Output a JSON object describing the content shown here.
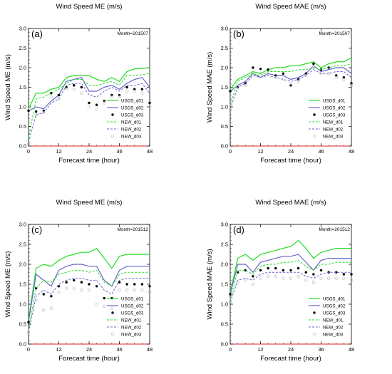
{
  "legend_labels": [
    "USGS_d01",
    "USGS_d02",
    "USGS_d03",
    "NEW_d01",
    "NEW_d02",
    "NEW_d03"
  ],
  "colors": {
    "d01": "#22dd22",
    "d02": "#6666cc",
    "d03": "#000000",
    "new_d03": "#bbbbbb",
    "zero_line": "#dd2222"
  },
  "chart_data": [
    {
      "type": "line",
      "panel": "(a)",
      "title": "Wind Speed ME (m/s)",
      "month_label": "Month=201507",
      "xlabel": "Forecast time (hour)",
      "ylabel": "Wind Speed ME (m/s)",
      "xlim": [
        0,
        48
      ],
      "ylim": [
        0,
        3.0
      ],
      "xticks": [
        "0",
        "12",
        "24",
        "36",
        "48"
      ],
      "yticks": [
        "0.0",
        "0.5",
        "1.0",
        "1.5",
        "2.0",
        "2.5",
        "3.0"
      ],
      "x": [
        0,
        3,
        6,
        9,
        12,
        15,
        18,
        21,
        24,
        27,
        30,
        33,
        36,
        39,
        42,
        45,
        48
      ],
      "series": [
        {
          "name": "USGS_d01",
          "style": "solid",
          "values": [
            0.95,
            1.35,
            1.35,
            1.45,
            1.5,
            1.75,
            1.8,
            1.8,
            1.8,
            1.7,
            1.65,
            1.75,
            1.65,
            1.9,
            1.97,
            1.98,
            2.0
          ]
        },
        {
          "name": "USGS_d02",
          "style": "solid",
          "values": [
            0.9,
            1.0,
            0.95,
            1.15,
            1.3,
            1.65,
            1.7,
            1.75,
            1.4,
            1.4,
            1.5,
            1.55,
            1.45,
            1.6,
            1.7,
            1.75,
            1.5
          ]
        },
        {
          "name": "USGS_d03",
          "style": "dots",
          "values": [
            0.9,
            0.88,
            0.9,
            1.35,
            1.3,
            1.5,
            1.55,
            1.5,
            1.1,
            1.05,
            1.15,
            1.3,
            1.3,
            1.5,
            1.45,
            1.45,
            1.1
          ]
        },
        {
          "name": "NEW_d01",
          "style": "dashed",
          "values": [
            0.2,
            1.2,
            1.25,
            1.35,
            1.45,
            1.6,
            1.7,
            1.7,
            1.55,
            1.55,
            1.6,
            1.65,
            1.55,
            1.8,
            1.8,
            1.82,
            1.85
          ]
        },
        {
          "name": "NEW_d02",
          "style": "dashed",
          "values": [
            0.1,
            0.8,
            0.85,
            1.1,
            1.2,
            1.55,
            1.6,
            1.6,
            1.3,
            1.25,
            1.4,
            1.5,
            1.4,
            1.55,
            1.55,
            1.6,
            1.35
          ]
        },
        {
          "name": "NEW_d03",
          "style": "open",
          "values": [
            0.05,
            0.8,
            0.85,
            1.25,
            1.2,
            1.45,
            1.45,
            1.35,
            1.0,
            0.95,
            1.1,
            1.25,
            1.25,
            1.4,
            1.4,
            1.35,
            1.0
          ]
        }
      ]
    },
    {
      "type": "line",
      "panel": "(b)",
      "title": "Wind Speed MAE (m/s)",
      "month_label": "Month=201507",
      "xlabel": "Forecast time (hour)",
      "ylabel": "Wind Speed MAE (m/s)",
      "xlim": [
        0,
        48
      ],
      "ylim": [
        0,
        3.0
      ],
      "xticks": [
        "0",
        "12",
        "24",
        "36",
        "48"
      ],
      "yticks": [
        "0.0",
        "0.5",
        "1.0",
        "1.5",
        "2.0",
        "2.5",
        "3.0"
      ],
      "x": [
        0,
        3,
        6,
        9,
        12,
        15,
        18,
        21,
        24,
        27,
        30,
        33,
        36,
        39,
        42,
        45,
        48
      ],
      "series": [
        {
          "name": "USGS_d01",
          "style": "solid",
          "values": [
            1.45,
            1.7,
            1.8,
            1.9,
            1.85,
            1.95,
            2.0,
            2.0,
            2.05,
            2.05,
            2.1,
            2.15,
            2.0,
            2.1,
            2.15,
            2.15,
            2.25
          ]
        },
        {
          "name": "USGS_d02",
          "style": "solid",
          "values": [
            1.4,
            1.55,
            1.65,
            1.85,
            1.75,
            1.85,
            1.8,
            1.8,
            1.7,
            1.75,
            1.85,
            2.05,
            1.9,
            1.95,
            2.0,
            2.0,
            1.85
          ]
        },
        {
          "name": "USGS_d03",
          "style": "dots",
          "values": [
            1.4,
            1.5,
            1.6,
            2.0,
            1.97,
            1.95,
            1.8,
            1.85,
            1.55,
            1.7,
            1.85,
            2.1,
            1.95,
            2.0,
            1.8,
            1.75,
            1.6
          ]
        },
        {
          "name": "NEW_d01",
          "style": "dashed",
          "values": [
            1.05,
            1.65,
            1.75,
            1.85,
            1.8,
            1.9,
            1.9,
            1.9,
            1.9,
            1.95,
            1.95,
            2.0,
            1.95,
            2.0,
            2.05,
            2.05,
            2.1
          ]
        },
        {
          "name": "NEW_d02",
          "style": "dashed",
          "values": [
            0.95,
            1.5,
            1.6,
            1.8,
            1.75,
            1.8,
            1.75,
            1.7,
            1.65,
            1.7,
            1.8,
            1.95,
            1.85,
            1.85,
            1.9,
            1.9,
            1.75
          ]
        },
        {
          "name": "NEW_d03",
          "style": "open",
          "values": [
            0.95,
            1.5,
            1.55,
            1.85,
            1.85,
            1.85,
            1.75,
            1.7,
            1.6,
            1.65,
            1.8,
            2.0,
            1.85,
            1.85,
            1.75,
            1.7,
            1.55
          ]
        }
      ]
    },
    {
      "type": "line",
      "panel": "(c)",
      "title": "Wind Speed ME (m/s)",
      "month_label": "Month=201512",
      "xlabel": "Forecast time (hour)",
      "ylabel": "Wind Speed ME (m/s)",
      "xlim": [
        0,
        48
      ],
      "ylim": [
        0,
        3.0
      ],
      "xticks": [
        "0",
        "12",
        "24",
        "36",
        "48"
      ],
      "yticks": [
        "0.0",
        "0.5",
        "1.0",
        "1.5",
        "2.0",
        "2.5",
        "3.0"
      ],
      "x": [
        0,
        3,
        6,
        9,
        12,
        15,
        18,
        21,
        24,
        27,
        30,
        33,
        36,
        39,
        42,
        45,
        48
      ],
      "series": [
        {
          "name": "USGS_d01",
          "style": "solid",
          "values": [
            0.6,
            1.9,
            2.0,
            1.95,
            2.1,
            2.2,
            2.25,
            2.3,
            2.3,
            2.4,
            2.15,
            1.9,
            2.2,
            2.25,
            2.25,
            2.25,
            2.25
          ]
        },
        {
          "name": "USGS_d02",
          "style": "solid",
          "values": [
            0.55,
            1.75,
            1.6,
            1.45,
            1.85,
            1.95,
            2.0,
            2.0,
            1.95,
            1.95,
            1.6,
            1.45,
            1.85,
            1.95,
            1.95,
            1.95,
            1.95
          ]
        },
        {
          "name": "USGS_d03",
          "style": "dots",
          "values": [
            0.55,
            1.4,
            1.25,
            1.2,
            1.45,
            1.55,
            1.6,
            1.55,
            1.5,
            1.45,
            1.15,
            1.15,
            1.55,
            1.5,
            1.5,
            1.5,
            1.45
          ]
        },
        {
          "name": "NEW_d01",
          "style": "dashed",
          "values": [
            0.35,
            1.4,
            1.6,
            1.55,
            1.75,
            1.8,
            1.85,
            1.85,
            1.8,
            1.85,
            1.55,
            1.45,
            1.75,
            1.8,
            1.8,
            1.8,
            1.8
          ]
        },
        {
          "name": "NEW_d02",
          "style": "dashed",
          "values": [
            0.3,
            1.2,
            1.35,
            1.25,
            1.5,
            1.6,
            1.65,
            1.65,
            1.6,
            1.6,
            1.35,
            1.25,
            1.6,
            1.65,
            1.65,
            1.65,
            1.65
          ]
        },
        {
          "name": "NEW_d03",
          "style": "open",
          "values": [
            0.3,
            1.1,
            0.85,
            0.9,
            1.3,
            1.4,
            1.4,
            1.35,
            1.35,
            1.0,
            0.95,
            0.9,
            1.35,
            1.35,
            1.35,
            1.35,
            1.3
          ]
        }
      ]
    },
    {
      "type": "line",
      "panel": "(d)",
      "title": "Wind Speed MAE (m/s)",
      "month_label": "Month=201512",
      "xlabel": "Forecast time (hour)",
      "ylabel": "Wind Speed MAE (m/s)",
      "xlim": [
        0,
        48
      ],
      "ylim": [
        0,
        3.0
      ],
      "xticks": [
        "0",
        "12",
        "24",
        "36",
        "48"
      ],
      "yticks": [
        "0.0",
        "0.5",
        "1.0",
        "1.5",
        "2.0",
        "2.5",
        "3.0"
      ],
      "x": [
        0,
        3,
        6,
        9,
        12,
        15,
        18,
        21,
        24,
        27,
        30,
        33,
        36,
        39,
        42,
        45,
        48
      ],
      "series": [
        {
          "name": "USGS_d01",
          "style": "solid",
          "values": [
            1.3,
            2.15,
            2.25,
            2.1,
            2.25,
            2.3,
            2.35,
            2.4,
            2.45,
            2.6,
            2.4,
            2.15,
            2.3,
            2.35,
            2.4,
            2.4,
            2.4
          ]
        },
        {
          "name": "USGS_d02",
          "style": "solid",
          "values": [
            1.25,
            2.0,
            2.0,
            1.8,
            2.05,
            2.1,
            2.15,
            2.2,
            2.2,
            2.25,
            2.05,
            1.85,
            2.1,
            2.15,
            2.15,
            2.15,
            2.15
          ]
        },
        {
          "name": "USGS_d03",
          "style": "dots",
          "values": [
            1.25,
            1.8,
            1.85,
            1.7,
            1.85,
            1.9,
            1.9,
            1.85,
            1.85,
            1.9,
            1.8,
            1.75,
            1.85,
            1.8,
            1.8,
            1.75,
            1.75
          ]
        },
        {
          "name": "NEW_d01",
          "style": "dashed",
          "values": [
            1.1,
            1.85,
            1.85,
            1.75,
            1.95,
            2.0,
            2.0,
            2.05,
            2.05,
            2.1,
            1.95,
            1.85,
            2.0,
            2.0,
            2.05,
            2.05,
            2.05
          ]
        },
        {
          "name": "NEW_d02",
          "style": "dashed",
          "values": [
            1.05,
            1.6,
            1.65,
            1.6,
            1.75,
            1.8,
            1.8,
            1.8,
            1.8,
            1.8,
            1.7,
            1.65,
            1.75,
            1.8,
            1.8,
            1.8,
            1.8
          ]
        },
        {
          "name": "NEW_d03",
          "style": "open",
          "values": [
            1.05,
            1.55,
            1.6,
            1.5,
            1.65,
            1.7,
            1.7,
            1.65,
            1.65,
            1.7,
            1.6,
            1.55,
            1.65,
            1.65,
            1.65,
            1.65,
            1.6
          ]
        }
      ]
    }
  ]
}
